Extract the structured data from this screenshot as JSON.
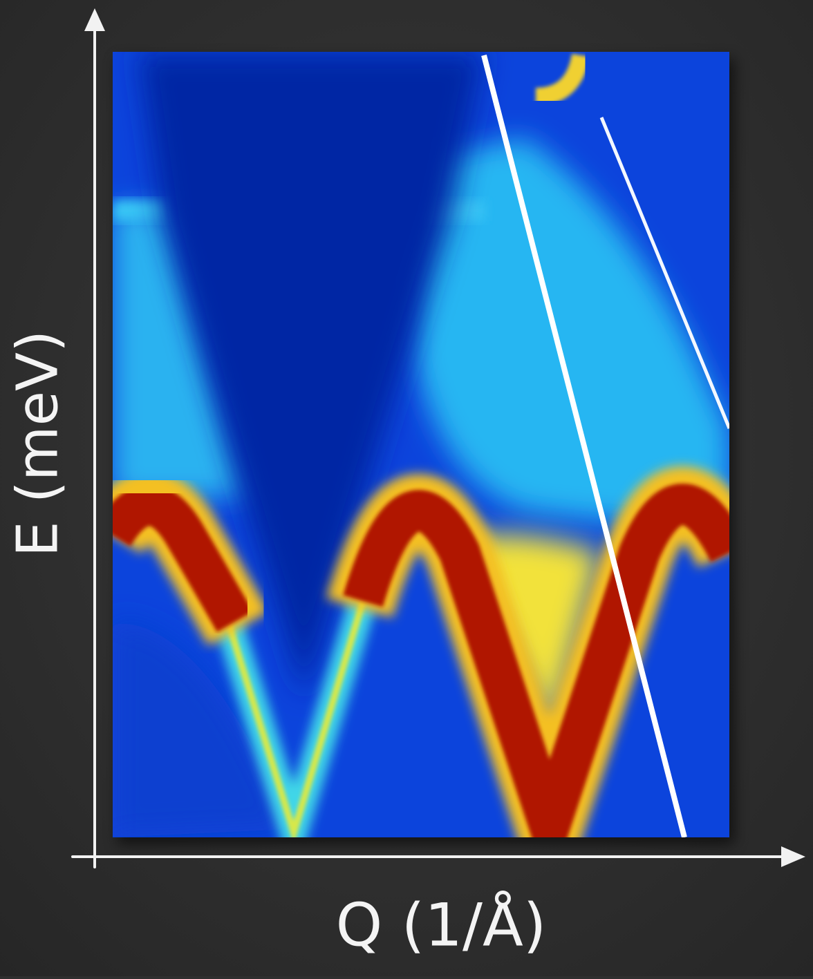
{
  "axes": {
    "y_label": "E (meV)",
    "x_label": "Q (1/Å)"
  }
}
